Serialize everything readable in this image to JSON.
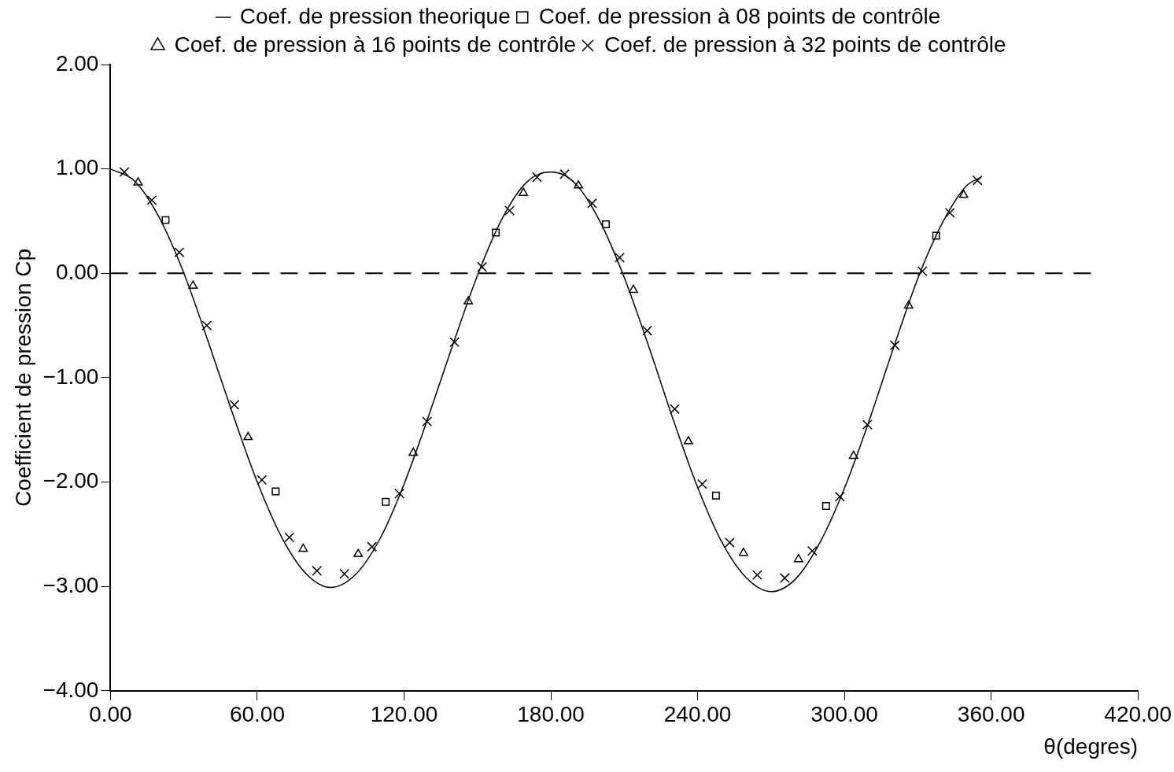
{
  "chart_data": {
    "type": "scatter",
    "xlabel": "θ(degres)",
    "ylabel": "Coefficient de pression Cp",
    "xlim": [
      0,
      420
    ],
    "ylim": [
      -4,
      2
    ],
    "xticks": [
      {
        "value": 0,
        "label": "0.00"
      },
      {
        "value": 60,
        "label": "60.00"
      },
      {
        "value": 120,
        "label": "120.00"
      },
      {
        "value": 180,
        "label": "180.00"
      },
      {
        "value": 240,
        "label": "240.00"
      },
      {
        "value": 300,
        "label": "300.00"
      },
      {
        "value": 360,
        "label": "360.00"
      },
      {
        "value": 420,
        "label": "420.00"
      }
    ],
    "yticks": [
      {
        "value": -4,
        "label": "−4.00"
      },
      {
        "value": -3,
        "label": "−3.00"
      },
      {
        "value": -2,
        "label": "−2.00"
      },
      {
        "value": -1,
        "label": "−1.00"
      },
      {
        "value": 0,
        "label": "0.00"
      },
      {
        "value": 1,
        "label": "1.00"
      },
      {
        "value": 2,
        "label": "2.00"
      }
    ],
    "grid": false,
    "legend": "top",
    "ref_lines": [
      {
        "axis": "y",
        "value": 0,
        "line_style": "dashed",
        "color": "#000000"
      }
    ],
    "series": [
      {
        "name": "Coef. de pression theorique",
        "type": "line",
        "marker": "none",
        "line_style": "solid",
        "color": "#000000",
        "x": [
          0,
          10,
          20,
          30,
          40,
          50,
          60,
          70,
          80,
          90,
          100,
          110,
          120,
          130,
          140,
          150,
          160,
          170,
          180,
          190,
          200,
          210,
          220,
          230,
          240,
          250,
          260,
          270,
          280,
          290,
          300,
          310,
          320,
          330,
          340,
          350,
          356
        ],
        "values": [
          1.0,
          0.88,
          0.53,
          0.0,
          -0.66,
          -1.35,
          -2.0,
          -2.53,
          -2.88,
          -3.01,
          -2.89,
          -2.55,
          -2.02,
          -1.37,
          -0.68,
          -0.02,
          0.52,
          0.87,
          0.97,
          0.86,
          0.5,
          -0.04,
          -0.7,
          -1.4,
          -2.05,
          -2.58,
          -2.92,
          -3.05,
          -2.93,
          -2.58,
          -2.06,
          -1.42,
          -0.72,
          -0.05,
          0.48,
          0.84,
          0.92
        ]
      },
      {
        "name": "Coef. de pression à 08 points de contrôle",
        "marker": "square",
        "color": "#000000",
        "x": [
          22.5,
          67.5,
          112.5,
          157.5,
          202.5,
          247.5,
          292.5,
          337.5
        ],
        "values": [
          0.51,
          -2.09,
          -2.19,
          0.39,
          0.47,
          -2.13,
          -2.23,
          0.36
        ]
      },
      {
        "name": "Coef. de pression à 16 points de contrôle",
        "marker": "triangle",
        "color": "#000000",
        "x": [
          11.25,
          33.75,
          56.25,
          78.75,
          101.25,
          123.75,
          146.25,
          168.75,
          191.25,
          213.75,
          236.25,
          258.75,
          281.25,
          303.75,
          326.25,
          348.75
        ],
        "values": [
          0.87,
          -0.12,
          -1.57,
          -2.64,
          -2.69,
          -1.72,
          -0.27,
          0.77,
          0.84,
          -0.16,
          -1.61,
          -2.68,
          -2.74,
          -1.75,
          -0.31,
          0.75
        ]
      },
      {
        "name": "Coef. de pression à 32 points de contrôle",
        "marker": "cross",
        "color": "#000000",
        "x": [
          5.625,
          16.875,
          28.125,
          39.375,
          50.625,
          61.875,
          73.125,
          84.375,
          95.625,
          106.875,
          118.125,
          129.375,
          140.625,
          151.875,
          163.125,
          174.375,
          185.625,
          196.875,
          208.125,
          219.375,
          230.625,
          241.875,
          253.125,
          264.375,
          275.625,
          286.875,
          298.125,
          309.375,
          320.625,
          331.875,
          343.125,
          354.375
        ],
        "values": [
          0.97,
          0.7,
          0.2,
          -0.5,
          -1.26,
          -1.98,
          -2.53,
          -2.85,
          -2.88,
          -2.62,
          -2.11,
          -1.42,
          -0.66,
          0.06,
          0.6,
          0.92,
          0.95,
          0.67,
          0.15,
          -0.55,
          -1.3,
          -2.02,
          -2.58,
          -2.89,
          -2.92,
          -2.66,
          -2.14,
          -1.45,
          -0.69,
          0.02,
          0.58,
          0.89
        ]
      }
    ]
  }
}
